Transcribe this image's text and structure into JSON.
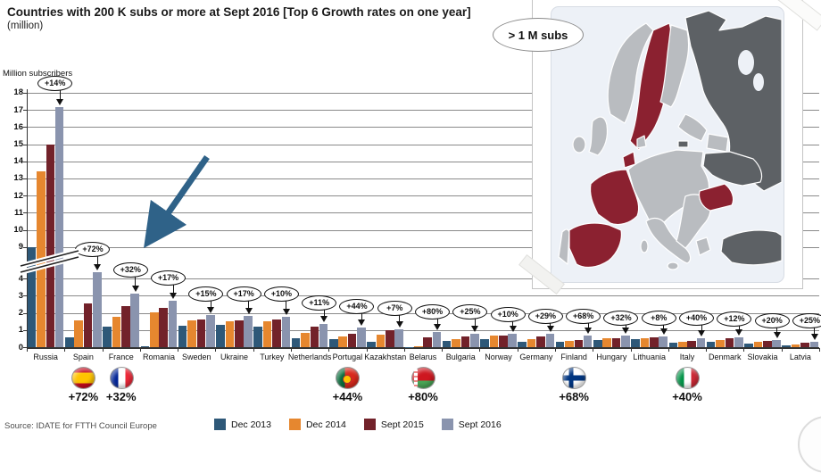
{
  "title": "Countries with 200 K subs or more at Sept 2016 [Top 6 Growth rates on one year]",
  "subtitle": "(million)",
  "y_axis_label": "Million subscribers",
  "source": "Source: IDATE for FTTH Council Europe",
  "map_callout": "> 1 M subs",
  "legend": [
    {
      "label": "Dec 2013",
      "color": "#2e5878"
    },
    {
      "label": "Dec 2014",
      "color": "#e6872f"
    },
    {
      "label": "Sept 2015",
      "color": "#72222a"
    },
    {
      "label": "Sept 2016",
      "color": "#8a94ae"
    }
  ],
  "chart_data": {
    "type": "bar",
    "title": "Countries with 200 K subs or more at Sept 2016 [Top 6 Growth rates on one year]",
    "ylabel": "Million subscribers",
    "unit": "million",
    "y_ticks_lower": [
      0,
      1,
      2,
      3,
      4
    ],
    "y_ticks_upper": [
      9,
      10,
      11,
      12,
      13,
      14,
      15,
      16,
      17,
      18
    ],
    "axis_break_between": [
      4,
      9
    ],
    "grid": true,
    "categories": [
      "Russia",
      "Spain",
      "France",
      "Romania",
      "Sweden",
      "Ukraine",
      "Turkey",
      "Netherlands",
      "Portugal",
      "Kazakhstan",
      "Belarus",
      "Bulgaria",
      "Norway",
      "Germany",
      "Finland",
      "Hungary",
      "Lithuania",
      "Italy",
      "Denmark",
      "Slovakia",
      "Latvia"
    ],
    "growth_labels": [
      "+14%",
      "+72%",
      "+32%",
      "+17%",
      "+15%",
      "+17%",
      "+10%",
      "+11%",
      "+44%",
      "+7%",
      "+80%",
      "+25%",
      "+10%",
      "+29%",
      "+68%",
      "+32%",
      "+8%",
      "+40%",
      "+12%",
      "+20%",
      "+25%"
    ],
    "series": [
      {
        "name": "Dec 2013",
        "color": "#2e5878",
        "values": [
          9,
          0.55,
          1.2,
          0.05,
          1.25,
          1.3,
          1.2,
          0.5,
          0.45,
          0.3,
          0.02,
          0.35,
          0.45,
          0.3,
          0.3,
          0.4,
          0.45,
          0.26,
          0.33,
          0.2,
          0.12
        ]
      },
      {
        "name": "Dec 2014",
        "color": "#e6872f",
        "values": [
          13.4,
          1.55,
          1.75,
          2.05,
          1.55,
          1.5,
          1.5,
          0.85,
          0.65,
          0.75,
          0.05,
          0.45,
          0.68,
          0.45,
          0.37,
          0.5,
          0.52,
          0.3,
          0.43,
          0.3,
          0.17
        ]
      },
      {
        "name": "Sept 2015",
        "color": "#72222a",
        "values": [
          15,
          2.55,
          2.4,
          2.3,
          1.6,
          1.58,
          1.6,
          1.2,
          0.8,
          0.98,
          0.55,
          0.62,
          0.7,
          0.6,
          0.42,
          0.5,
          0.56,
          0.38,
          0.5,
          0.35,
          0.26
        ]
      },
      {
        "name": "Sept 2016",
        "color": "#8a94ae",
        "values": [
          17.15,
          4.4,
          3.15,
          2.7,
          1.9,
          1.83,
          1.78,
          1.33,
          1.15,
          1.05,
          0.9,
          0.78,
          0.77,
          0.78,
          0.7,
          0.66,
          0.6,
          0.54,
          0.56,
          0.42,
          0.33
        ]
      }
    ],
    "notes": "Russia Dec 2013 bar is truncated by the y-axis break between 4 and 9"
  },
  "flag_callouts": [
    {
      "country": "Spain",
      "index": 1,
      "growth": "+72%",
      "flag": "spain"
    },
    {
      "country": "France",
      "index": 2,
      "growth": "+32%",
      "flag": "france"
    },
    {
      "country": "Portugal",
      "index": 8,
      "growth": "+44%",
      "flag": "portugal"
    },
    {
      "country": "Belarus",
      "index": 10,
      "growth": "+80%",
      "flag": "belarus"
    },
    {
      "country": "Finland",
      "index": 14,
      "growth": "+68%",
      "flag": "finland"
    },
    {
      "country": "Italy",
      "index": 17,
      "growth": "+40%",
      "flag": "italy"
    }
  ],
  "map": {
    "callout_label": "> 1 M subs",
    "highlight_color": "#8b2130",
    "dark_color": "#5d6165",
    "land_color": "#b9bcc0",
    "sea_color": "#edf1f7",
    "highlighted_countries": [
      "Spain",
      "France",
      "Netherlands",
      "Sweden",
      "Romania"
    ],
    "dark_countries": [
      "Russia",
      "Ukraine",
      "Turkey"
    ]
  },
  "annotation_arrow_color": "#2f6288"
}
